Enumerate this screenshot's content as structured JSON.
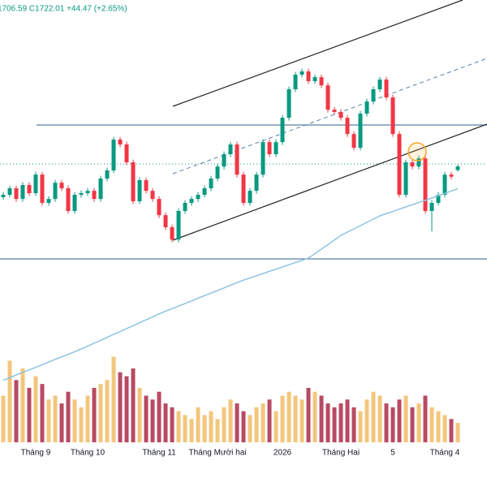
{
  "chart_data": {
    "type": "candlestick",
    "header": "1706.59  C1722.01  +44.47 (+2.65%)",
    "categories": [
      null,
      null,
      null,
      null,
      null,
      "Tháng 9",
      null,
      null,
      null,
      null,
      null,
      null,
      null,
      "Tháng 10",
      null,
      null,
      null,
      null,
      null,
      null,
      null,
      null,
      null,
      null,
      "Tháng 11",
      null,
      null,
      null,
      null,
      null,
      null,
      null,
      null,
      "Tháng Mười hai",
      null,
      null,
      null,
      null,
      null,
      null,
      null,
      null,
      null,
      "2026",
      null,
      null,
      null,
      null,
      null,
      null,
      null,
      null,
      "Tháng Hai",
      null,
      null,
      null,
      null,
      null,
      null,
      null,
      "5",
      null,
      null,
      null,
      null,
      null,
      null,
      null,
      "Tháng 4",
      null,
      null
    ],
    "open": [
      1590,
      1600,
      1628,
      1582,
      1642,
      1607,
      1687,
      1565,
      1582,
      1652,
      1628,
      1530,
      1600,
      1607,
      1617,
      1582,
      1670,
      1705,
      1838,
      1817,
      1740,
      1572,
      1663,
      1617,
      1582,
      1512,
      1460,
      1407,
      1530,
      1565,
      1582,
      1600,
      1628,
      1670,
      1722,
      1775,
      1817,
      1687,
      1565,
      1617,
      1687,
      1827,
      1775,
      1827,
      1932,
      2055,
      2118,
      2132,
      2090,
      2107,
      2072,
      1967,
      1957,
      1932,
      1862,
      1803,
      1950,
      2002,
      2055,
      2097,
      2020,
      1862,
      1600,
      1740,
      1722,
      1757,
      1530,
      1565,
      1600,
      1687,
      1706.59
    ],
    "high": [
      1612,
      1640,
      1640,
      1654,
      1654,
      1699,
      1699,
      1594,
      1664,
      1664,
      1640,
      1612,
      1619,
      1629,
      1629,
      1682,
      1717,
      1850,
      1850,
      1829,
      1752,
      1675,
      1675,
      1629,
      1594,
      1524,
      1472,
      1542,
      1577,
      1594,
      1612,
      1640,
      1682,
      1734,
      1787,
      1829,
      1829,
      1699,
      1629,
      1699,
      1839,
      1839,
      1839,
      1944,
      2067,
      2130,
      2144,
      2144,
      2119,
      2119,
      2084,
      1979,
      1969,
      1944,
      1874,
      1962,
      2014,
      2067,
      2109,
      2109,
      2032,
      1874,
      1752,
      1752,
      1769,
      1769,
      1577,
      1612,
      1699,
      1699,
      1730
    ],
    "low": [
      1578,
      1588,
      1570,
      1570,
      1595,
      1595,
      1553,
      1553,
      1570,
      1616,
      1518,
      1518,
      1588,
      1595,
      1570,
      1570,
      1658,
      1693,
      1805,
      1728,
      1560,
      1560,
      1605,
      1570,
      1500,
      1448,
      1395,
      1395,
      1518,
      1553,
      1570,
      1588,
      1616,
      1658,
      1710,
      1763,
      1675,
      1553,
      1553,
      1605,
      1675,
      1763,
      1763,
      1815,
      1920,
      2043,
      2106,
      2078,
      2078,
      2060,
      1955,
      1945,
      1920,
      1850,
      1791,
      1791,
      1938,
      1990,
      2043,
      2008,
      1850,
      1588,
      1588,
      1710,
      1710,
      1518,
      1442,
      1553,
      1588,
      1666,
      1700
    ],
    "close": [
      1600,
      1628,
      1582,
      1642,
      1607,
      1687,
      1565,
      1582,
      1652,
      1628,
      1530,
      1600,
      1607,
      1617,
      1582,
      1670,
      1705,
      1838,
      1817,
      1740,
      1572,
      1663,
      1617,
      1582,
      1512,
      1460,
      1407,
      1530,
      1565,
      1582,
      1600,
      1628,
      1670,
      1722,
      1775,
      1817,
      1687,
      1565,
      1617,
      1687,
      1827,
      1775,
      1827,
      1932,
      2055,
      2118,
      2132,
      2090,
      2107,
      2072,
      1967,
      1957,
      1932,
      1862,
      1803,
      1950,
      2002,
      2055,
      2097,
      2020,
      1862,
      1600,
      1740,
      1722,
      1757,
      1530,
      1565,
      1600,
      1687,
      1678,
      1722.01
    ],
    "ma": [
      800,
      811,
      823,
      834,
      845,
      856,
      867,
      879,
      890,
      901,
      912,
      923,
      935,
      947,
      960,
      972,
      985,
      998,
      1010,
      1023,
      1035,
      1048,
      1061,
      1073,
      1086,
      1098,
      1109,
      1120,
      1131,
      1142,
      1154,
      1165,
      1176,
      1187,
      1198,
      1210,
      1221,
      1232,
      1241,
      1251,
      1260,
      1270,
      1279,
      1289,
      1298,
      1308,
      1317,
      1327,
      1346,
      1366,
      1385,
      1405,
      1425,
      1439,
      1453,
      1467,
      1481,
      1495,
      1509,
      1519,
      1528,
      1538,
      1548,
      1557,
      1567,
      1576,
      1586,
      1596,
      1606,
      1616,
      1626
    ],
    "volume": [
      60,
      105,
      80,
      95,
      70,
      85,
      75,
      55,
      60,
      50,
      65,
      55,
      45,
      60,
      70,
      75,
      80,
      110,
      90,
      85,
      95,
      70,
      60,
      55,
      65,
      50,
      45,
      40,
      35,
      30,
      45,
      35,
      40,
      30,
      45,
      55,
      50,
      40,
      35,
      45,
      50,
      55,
      40,
      60,
      65,
      60,
      55,
      70,
      65,
      60,
      50,
      45,
      50,
      55,
      45,
      40,
      55,
      65,
      60,
      50,
      45,
      55,
      60,
      45,
      50,
      60,
      45,
      40,
      35,
      30,
      25
    ],
    "ylim": [
      550,
      2440
    ],
    "vlim": [
      0,
      120
    ],
    "up_color": "#089981",
    "down_color": "#f23645",
    "ma_color": "#8cc4e0",
    "volume_up_color": "#f3c67c",
    "volume_down_color": "#b84a63"
  }
}
